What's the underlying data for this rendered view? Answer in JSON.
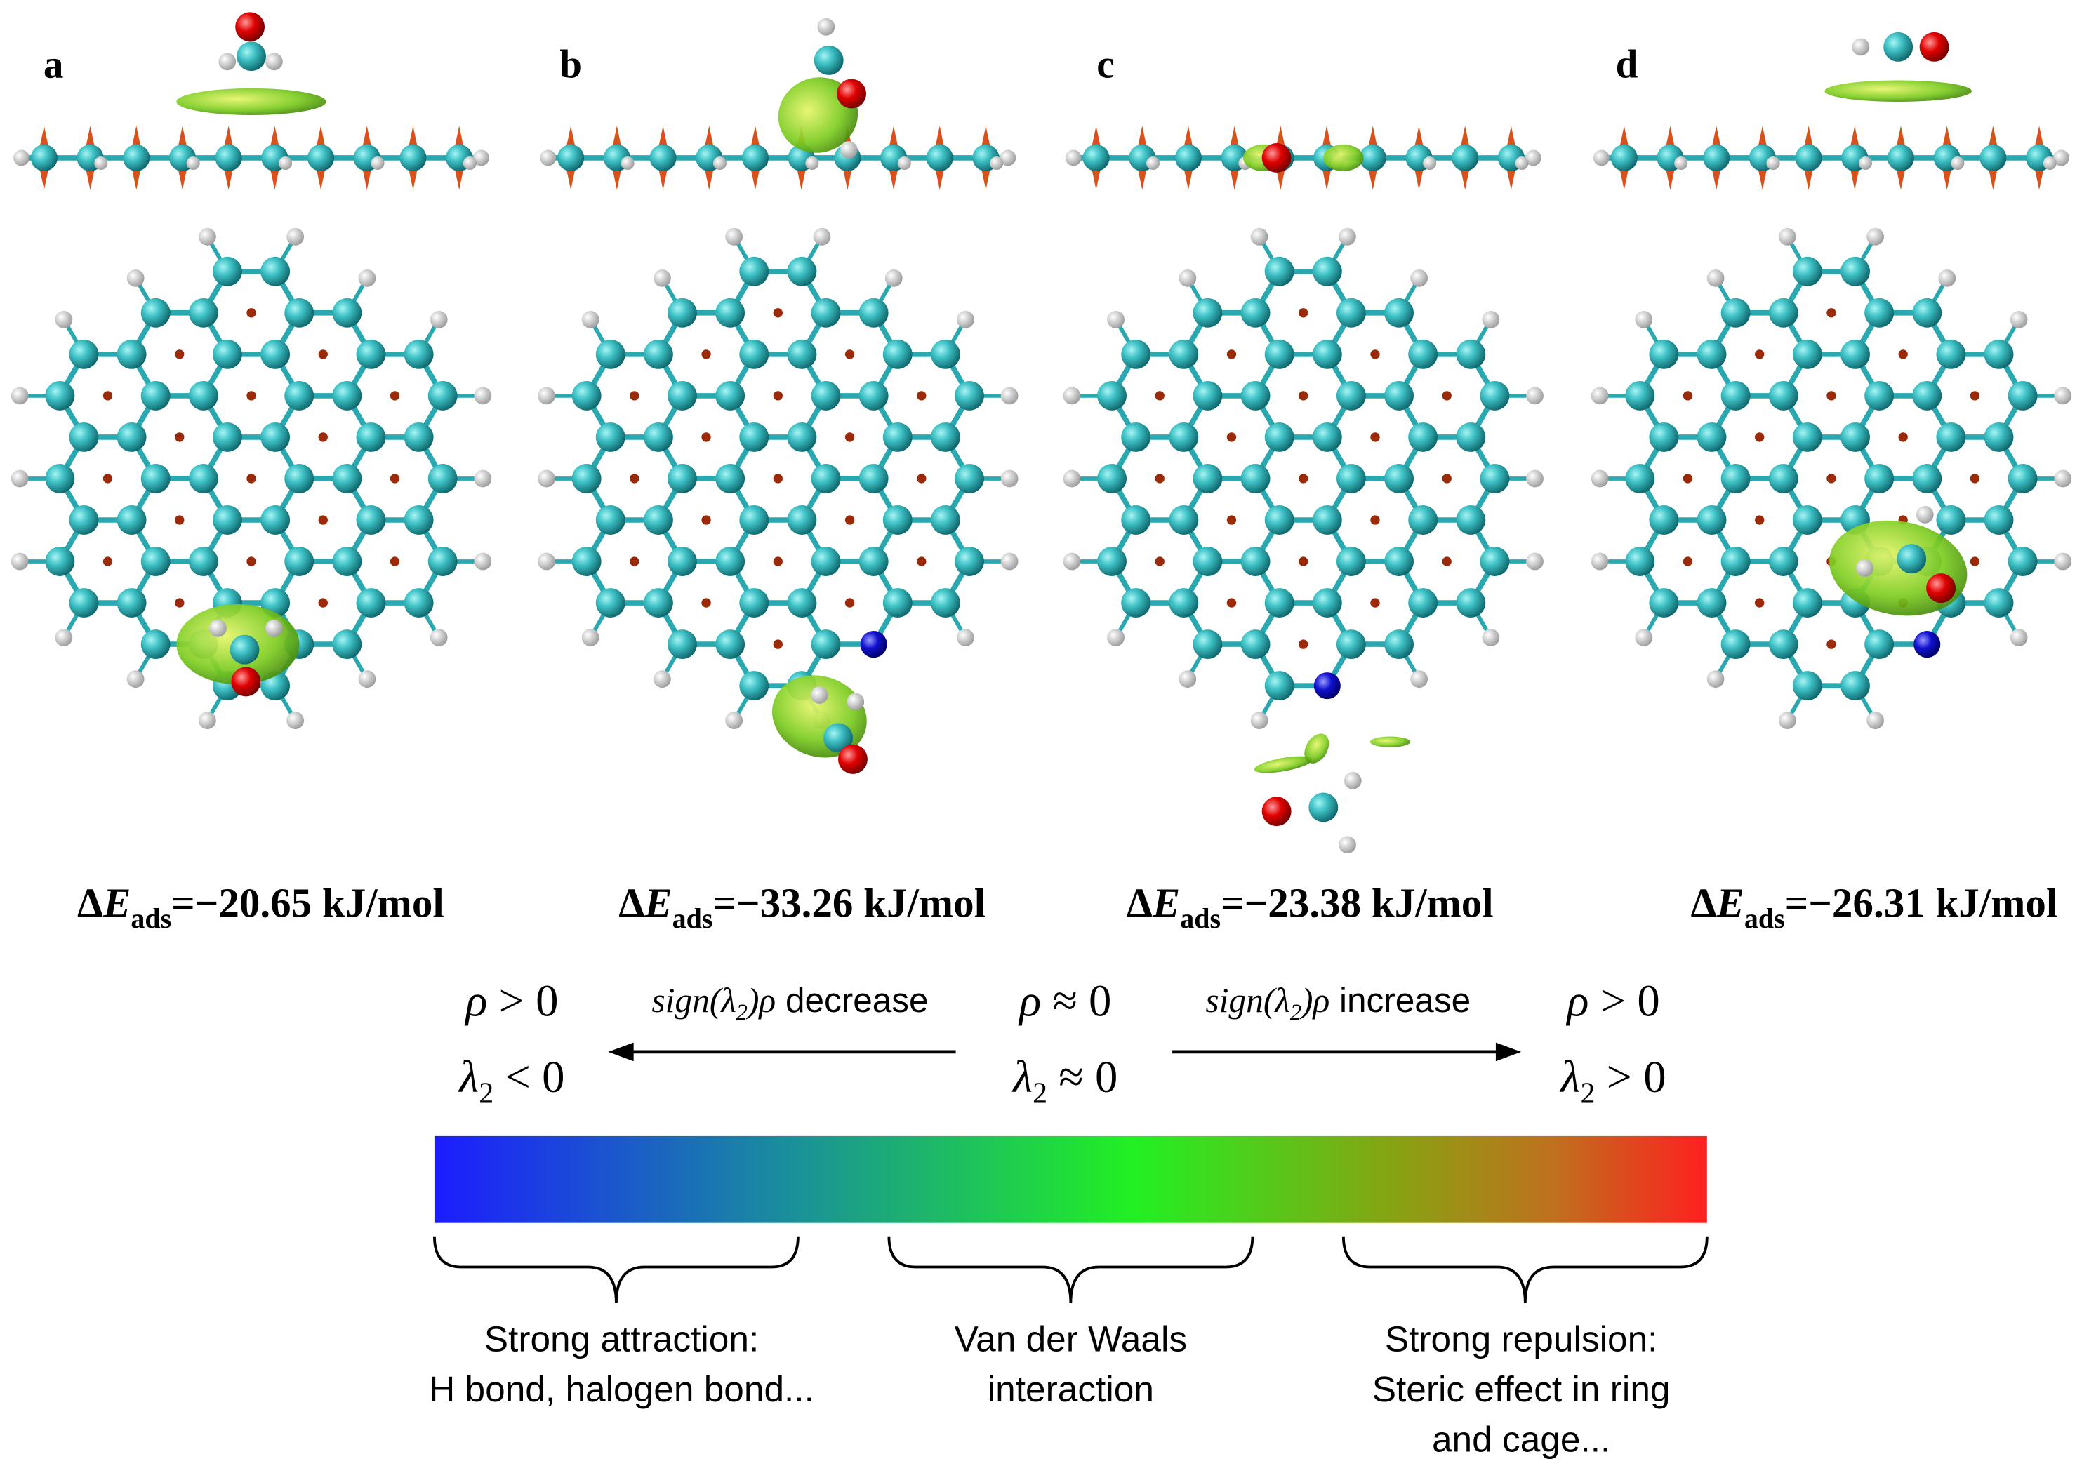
{
  "panels": [
    {
      "label": "a",
      "energy": [
        "Δ",
        "E",
        "ads",
        "=−20.65 kJ/mol"
      ]
    },
    {
      "label": "b",
      "energy": [
        "Δ",
        "E",
        "ads",
        "=−33.26 kJ/mol"
      ]
    },
    {
      "label": "c",
      "energy": [
        "Δ",
        "E",
        "ads",
        "=−23.38 kJ/mol"
      ]
    },
    {
      "label": "d",
      "energy": [
        "Δ",
        "E",
        "ads",
        "=−26.31 kJ/mol"
      ]
    }
  ],
  "scale": {
    "left": {
      "rho": [
        "ρ",
        " > 0"
      ],
      "lambda": [
        "λ",
        "2",
        " < 0"
      ]
    },
    "left_arrow": [
      "sign(λ",
      "2",
      ")ρ",
      " decrease"
    ],
    "middle": {
      "rho": [
        "ρ",
        " ≈ 0"
      ],
      "lambda": [
        "λ",
        "2",
        " ≈ 0"
      ]
    },
    "right_arrow": [
      "sign(λ",
      "2",
      ")ρ",
      " increase"
    ],
    "right": {
      "rho": [
        "ρ",
        " > 0"
      ],
      "lambda": [
        "λ",
        "2",
        " > 0"
      ]
    }
  },
  "regions": [
    {
      "lines": [
        "Strong attraction:",
        "H bond, halogen bond..."
      ]
    },
    {
      "lines": [
        "Van der Waals",
        "interaction"
      ]
    },
    {
      "lines": [
        "Strong repulsion:",
        "Steric effect in ring",
        "and cage..."
      ]
    }
  ]
}
